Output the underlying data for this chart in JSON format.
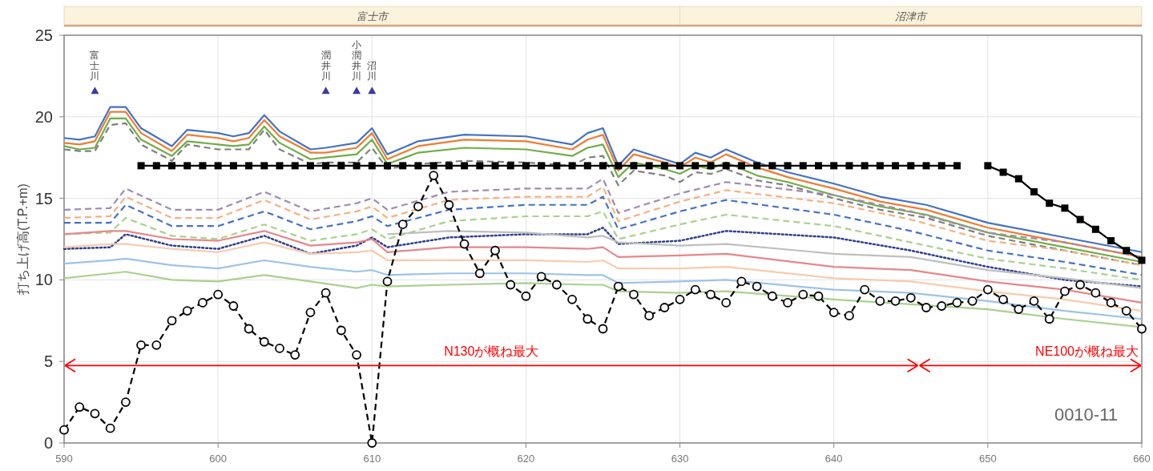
{
  "chart_data": {
    "type": "line",
    "ylabel": "打ち上げ高(T.P.+m)",
    "xlim": [
      590,
      660
    ],
    "xticks": [
      {
        "value": 590,
        "label": "590"
      },
      600,
      610,
      620,
      630,
      640,
      650,
      660
    ],
    "ylim": [
      0,
      25
    ],
    "yticks": [
      0,
      5,
      10,
      15,
      20,
      25
    ],
    "grid": true,
    "x": [
      590,
      591,
      592,
      593,
      594,
      595,
      597,
      598,
      600,
      601,
      602,
      603,
      604,
      606,
      607,
      609,
      610,
      611,
      613,
      616,
      620,
      623,
      624,
      625,
      626,
      627,
      629,
      630,
      631,
      632,
      633,
      635,
      637,
      640,
      643,
      646,
      650,
      655,
      660
    ],
    "series": [
      {
        "color": "#4472c4",
        "line_style": "solid",
        "values": [
          18.7,
          18.6,
          18.8,
          20.6,
          20.6,
          19.3,
          18.2,
          19.2,
          19.0,
          18.8,
          19.0,
          20.1,
          19.1,
          18.0,
          18.1,
          18.4,
          19.3,
          17.7,
          18.5,
          18.9,
          18.8,
          18.3,
          19.0,
          19.3,
          17.0,
          18.0,
          17.4,
          17.1,
          17.8,
          17.5,
          18.0,
          17.2,
          16.6,
          15.9,
          15.1,
          14.6,
          13.5,
          12.6,
          11.7
        ]
      },
      {
        "color": "#ed7d31",
        "line_style": "solid",
        "values": [
          18.4,
          18.3,
          18.5,
          20.3,
          20.3,
          19.0,
          17.9,
          18.9,
          18.7,
          18.5,
          18.7,
          19.8,
          18.8,
          17.8,
          17.8,
          18.1,
          19.0,
          17.4,
          18.2,
          18.6,
          18.5,
          18.0,
          18.6,
          18.9,
          16.7,
          17.7,
          17.2,
          16.9,
          17.5,
          17.2,
          17.7,
          16.9,
          16.3,
          15.6,
          14.8,
          14.3,
          13.2,
          12.3,
          11.4
        ]
      },
      {
        "color": "#70ad47",
        "line_style": "solid",
        "values": [
          18.2,
          18.0,
          18.1,
          19.9,
          19.9,
          18.6,
          17.6,
          18.5,
          18.3,
          18.2,
          18.3,
          19.4,
          18.4,
          17.4,
          17.5,
          17.7,
          18.6,
          17.1,
          17.8,
          18.1,
          18.0,
          17.6,
          18.1,
          18.3,
          16.3,
          17.2,
          16.8,
          16.5,
          17.0,
          16.8,
          17.2,
          16.4,
          16.0,
          15.2,
          14.5,
          14.0,
          12.9,
          12.0,
          11.1
        ]
      },
      {
        "color": "#7f7f7f",
        "line_style": "dashed",
        "values": [
          18.0,
          17.9,
          17.9,
          19.5,
          19.6,
          18.3,
          17.3,
          18.3,
          18.0,
          18.0,
          18.0,
          19.2,
          18.0,
          17.1,
          17.2,
          17.2,
          18.1,
          16.8,
          17.1,
          17.3,
          17.2,
          17.0,
          17.5,
          17.6,
          15.8,
          16.7,
          16.4,
          16.0,
          16.6,
          16.5,
          16.8,
          16.1,
          15.8,
          15.0,
          14.3,
          13.8,
          12.7,
          11.8,
          10.9
        ]
      },
      {
        "color": "#a08bb0",
        "line_style": "dashed",
        "x": [
          590,
          593,
          594,
          597,
          600,
          603,
          606,
          609,
          610,
          611,
          615,
          620,
          624,
          625,
          626,
          630,
          633,
          640,
          645,
          650,
          655,
          660
        ],
        "values": [
          14.3,
          14.4,
          15.6,
          14.3,
          14.3,
          15.4,
          14.2,
          14.7,
          15.0,
          14.3,
          15.4,
          15.6,
          15.6,
          16.2,
          14.1,
          15.3,
          16.0,
          15.2,
          14.2,
          12.9,
          12.3,
          11.4
        ]
      },
      {
        "color": "#f4b183",
        "line_style": "dashed",
        "x": [
          590,
          593,
          594,
          597,
          600,
          603,
          606,
          609,
          610,
          611,
          615,
          620,
          624,
          625,
          626,
          630,
          633,
          640,
          645,
          650,
          655,
          660
        ],
        "values": [
          13.8,
          13.9,
          15.1,
          13.8,
          13.8,
          14.9,
          13.7,
          14.2,
          14.5,
          13.8,
          14.9,
          15.1,
          15.1,
          15.7,
          13.6,
          14.8,
          15.5,
          14.7,
          13.7,
          12.4,
          11.8,
          10.9
        ]
      },
      {
        "color": "#4472c4",
        "line_style": "dashed",
        "x": [
          590,
          593,
          594,
          597,
          600,
          603,
          606,
          609,
          610,
          611,
          615,
          620,
          624,
          625,
          626,
          630,
          633,
          640,
          645,
          650,
          655,
          660
        ],
        "values": [
          13.5,
          13.5,
          14.6,
          13.3,
          13.3,
          14.2,
          13.1,
          13.6,
          13.9,
          13.3,
          14.3,
          14.6,
          14.6,
          15.1,
          13.1,
          14.2,
          14.9,
          14.0,
          13.0,
          11.8,
          11.1,
          10.3
        ]
      },
      {
        "color": "#a9d18e",
        "line_style": "dashed",
        "x": [
          590,
          593,
          594,
          597,
          600,
          603,
          606,
          609,
          610,
          611,
          615,
          620,
          624,
          625,
          626,
          630,
          633,
          640,
          645,
          650,
          655,
          660
        ],
        "values": [
          12.8,
          12.9,
          13.8,
          12.7,
          12.5,
          13.4,
          12.4,
          12.8,
          13.1,
          12.5,
          13.6,
          13.9,
          13.9,
          14.2,
          12.5,
          13.4,
          14.0,
          13.3,
          12.3,
          11.3,
          10.7,
          10.0
        ]
      },
      {
        "color": "#2f3f8f",
        "line_style": "dotted",
        "x": [
          590,
          593,
          594,
          597,
          600,
          603,
          606,
          609,
          610,
          611,
          615,
          620,
          624,
          625,
          626,
          630,
          633,
          640,
          645,
          650,
          655,
          660
        ],
        "values": [
          11.9,
          12.0,
          12.8,
          12.1,
          11.9,
          12.7,
          11.6,
          12.1,
          12.6,
          12.0,
          12.6,
          12.8,
          12.8,
          13.2,
          12.2,
          12.4,
          13.0,
          12.6,
          11.8,
          10.8,
          10.0,
          9.6
        ]
      },
      {
        "color": "#bfbfbf",
        "line_style": "solid",
        "x": [
          611,
          615,
          620,
          624,
          625,
          626,
          630,
          633,
          640,
          645,
          650,
          655,
          660
        ],
        "values": [
          12.8,
          13.0,
          12.9,
          12.6,
          12.7,
          12.3,
          12.1,
          12.2,
          11.6,
          11.4,
          10.6,
          10.1,
          9.5
        ]
      },
      {
        "color": "#e6878a",
        "line_style": "solid",
        "x": [
          590,
          593,
          594,
          597,
          600,
          603,
          606,
          609,
          610,
          611,
          615,
          620,
          624,
          625,
          626,
          630,
          633,
          640,
          645,
          650,
          655,
          660
        ],
        "values": [
          12.8,
          13.0,
          13.0,
          12.5,
          12.4,
          13.0,
          12.1,
          12.3,
          12.5,
          11.7,
          12.0,
          12.0,
          11.9,
          12.0,
          11.4,
          11.5,
          11.6,
          10.8,
          10.6,
          9.9,
          9.4,
          8.6
        ]
      },
      {
        "color": "#f8cbad",
        "line_style": "solid",
        "x": [
          590,
          593,
          594,
          597,
          600,
          603,
          606,
          609,
          610,
          611,
          615,
          620,
          624,
          625,
          626,
          630,
          633,
          640,
          645,
          650,
          655,
          660
        ],
        "values": [
          12.0,
          12.2,
          12.2,
          11.9,
          11.7,
          12.3,
          11.6,
          11.7,
          11.8,
          11.2,
          11.2,
          11.2,
          11.1,
          11.2,
          10.7,
          10.7,
          10.8,
          10.1,
          9.9,
          9.3,
          8.8,
          8.1
        ]
      },
      {
        "color": "#9dc3e6",
        "line_style": "solid",
        "x": [
          590,
          593,
          594,
          597,
          600,
          603,
          606,
          609,
          610,
          611,
          615,
          620,
          624,
          625,
          626,
          630,
          633,
          640,
          645,
          650,
          655,
          660
        ],
        "values": [
          11.0,
          11.2,
          11.3,
          10.9,
          10.7,
          11.2,
          10.8,
          10.5,
          10.6,
          10.3,
          10.4,
          10.4,
          10.3,
          10.3,
          9.8,
          9.9,
          10.0,
          9.4,
          9.2,
          8.7,
          8.1,
          7.6
        ]
      },
      {
        "color": "#a9d18e",
        "line_style": "solid",
        "x": [
          590,
          593,
          594,
          597,
          600,
          603,
          606,
          609,
          610,
          611,
          615,
          620,
          624,
          625,
          626,
          630,
          633,
          640,
          645,
          650,
          655,
          660
        ],
        "values": [
          10.1,
          10.4,
          10.5,
          10.0,
          9.9,
          10.3,
          9.9,
          9.5,
          9.7,
          9.6,
          9.7,
          9.8,
          9.7,
          9.7,
          9.3,
          9.2,
          9.3,
          8.8,
          8.5,
          8.2,
          7.6,
          7.1
        ]
      },
      {
        "color": "#000000",
        "line_style": "solid",
        "marker": "square",
        "x": [
          595,
          596,
          597,
          598,
          599,
          600,
          601,
          602,
          603,
          604,
          605,
          606,
          607,
          608,
          609,
          610,
          611,
          612,
          613,
          614,
          615,
          616,
          617,
          618,
          619,
          620,
          621,
          622,
          623,
          624,
          625,
          626,
          627,
          628,
          629,
          630,
          631,
          632,
          633,
          634,
          635,
          636,
          637,
          638,
          639,
          640,
          641,
          642,
          643,
          644,
          645,
          646,
          647,
          648
        ],
        "values": [
          17.0,
          17.0,
          17.0,
          17.0,
          17.0,
          17.0,
          17.0,
          17.0,
          17.0,
          17.0,
          17.0,
          17.0,
          17.0,
          17.0,
          17.0,
          17.0,
          17.0,
          17.0,
          17.0,
          17.0,
          17.0,
          17.0,
          17.0,
          17.0,
          17.0,
          17.0,
          17.0,
          17.0,
          17.0,
          17.0,
          17.0,
          17.0,
          17.0,
          17.0,
          17.0,
          17.0,
          17.0,
          17.0,
          17.0,
          17.0,
          17.0,
          17.0,
          17.0,
          17.0,
          17.0,
          17.0,
          17.0,
          17.0,
          17.0,
          17.0,
          17.0,
          17.0,
          17.0,
          17.0
        ]
      },
      {
        "color": "#000000",
        "line_style": "solid",
        "marker": "square",
        "x": [
          650,
          651,
          652,
          653,
          654,
          655,
          656,
          657,
          658,
          659,
          660
        ],
        "values": [
          17.0,
          16.6,
          16.2,
          15.4,
          14.7,
          14.4,
          13.7,
          13.1,
          12.4,
          11.8,
          11.2
        ]
      },
      {
        "color": "#000000",
        "line_style": "dashed",
        "marker": "circle",
        "x": [
          590,
          591,
          592,
          593,
          594,
          595,
          596,
          597,
          598,
          599,
          600,
          601,
          602,
          603,
          604,
          605,
          606,
          607,
          608,
          609,
          610,
          611,
          612,
          613,
          614,
          615,
          616,
          617,
          618,
          619,
          620,
          621,
          622,
          623,
          624,
          625,
          626,
          627,
          628,
          629,
          630,
          631,
          632,
          633,
          634,
          635,
          636,
          637,
          638,
          639,
          640,
          641,
          642,
          643,
          644,
          645,
          646,
          647,
          648,
          649,
          650,
          651,
          652,
          653,
          654,
          655,
          656,
          657,
          658,
          659,
          660
        ],
        "values": [
          0.8,
          2.2,
          1.8,
          0.9,
          2.5,
          6.0,
          6.0,
          7.5,
          8.1,
          8.6,
          9.1,
          8.4,
          7.0,
          6.2,
          5.8,
          5.4,
          8.0,
          9.2,
          6.9,
          5.4,
          0,
          9.9,
          13.4,
          14.5,
          16.4,
          14.6,
          12.2,
          10.4,
          11.8,
          9.7,
          9.0,
          10.2,
          9.7,
          8.8,
          7.6,
          7.0,
          9.6,
          9.1,
          7.8,
          8.3,
          8.8,
          9.4,
          9.1,
          8.6,
          9.9,
          9.6,
          9.0,
          8.6,
          9.1,
          9.0,
          8.0,
          7.8,
          9.4,
          8.7,
          8.7,
          8.9,
          8.3,
          8.4,
          8.6,
          8.7,
          9.4,
          8.8,
          8.2,
          8.7,
          7.6,
          9.3,
          9.7,
          9.2,
          8.6,
          8.1,
          7.0
        ]
      }
    ],
    "annotations": [
      "富士市",
      "沼津市",
      {
        "text": "富士川",
        "x": 592,
        "y": 21.6
      },
      {
        "text": "潤井川",
        "x": 607,
        "y": 21.6
      },
      {
        "text": "小潤井川",
        "x": 609,
        "y": 21.6
      },
      {
        "text": "沼川",
        "x": 610,
        "y": 21.6
      },
      "N130が概ね最大",
      "NE100が概ね最大",
      "0010-11"
    ]
  }
}
